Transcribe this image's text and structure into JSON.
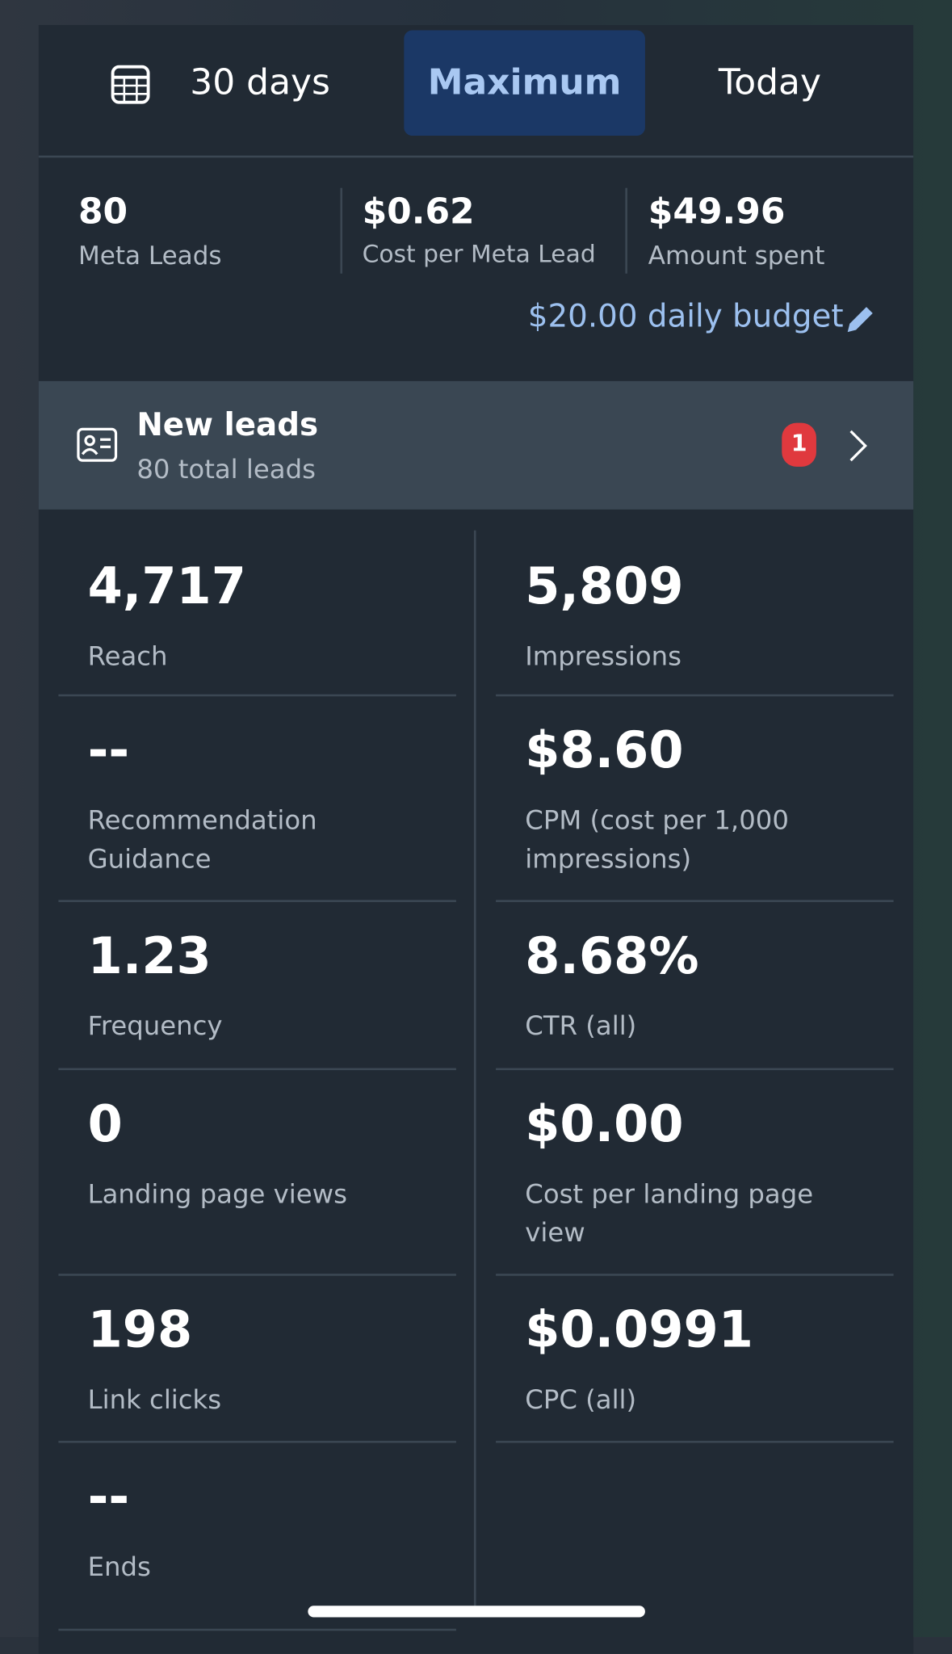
{
  "tabs": [
    "30 days",
    "Maximum",
    "Today"
  ],
  "summary": [
    {
      "value": "80",
      "label": "Meta Leads"
    },
    {
      "value": "$0.62",
      "label": "Cost per Meta Lead"
    },
    {
      "value": "$49.96",
      "label": "Amount spent"
    }
  ],
  "budget": "$20.00 daily budget",
  "leads": {
    "title": "New leads",
    "subtitle": "80 total leads",
    "badge": "1"
  },
  "metrics": [
    [
      {
        "value": "4,717",
        "label": "Reach"
      },
      {
        "value": "5,809",
        "label": "Impressions"
      }
    ],
    [
      {
        "value": "--",
        "label": "Recommendation Guidance"
      },
      {
        "value": "$8.60",
        "label": "CPM (cost per 1,000 impressions)"
      }
    ],
    [
      {
        "value": "1.23",
        "label": "Frequency"
      },
      {
        "value": "8.68%",
        "label": "CTR (all)"
      }
    ],
    [
      {
        "value": "0",
        "label": "Landing page views"
      },
      {
        "value": "$0.00",
        "label": "Cost per landing page view"
      }
    ],
    [
      {
        "value": "198",
        "label": "Link clicks"
      },
      {
        "value": "$0.0991",
        "label": "CPC (all)"
      }
    ],
    [
      {
        "value": "--",
        "label": "Ends"
      }
    ]
  ]
}
